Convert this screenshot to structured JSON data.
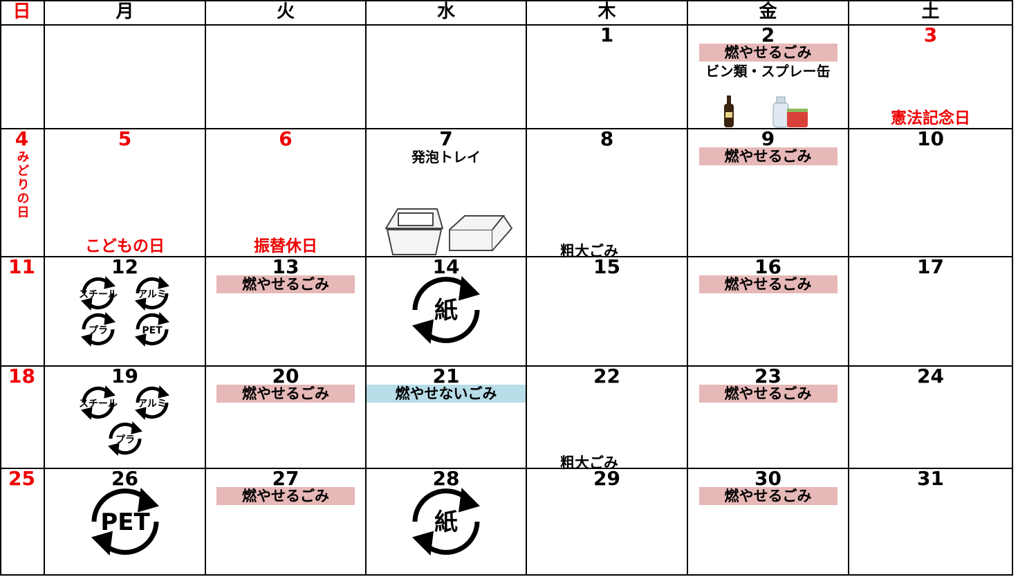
{
  "header": {
    "days": [
      "日",
      "月",
      "火",
      "水",
      "木",
      "金",
      "土"
    ]
  },
  "weeks": [
    [
      null,
      null,
      null,
      null,
      {
        "day": 1
      },
      {
        "day": 2,
        "tags": [
          "燃やせるごみ"
        ],
        "notes": [
          "ビン類・スプレー缶"
        ]
      },
      {
        "day": 3,
        "holiday": "憲法記念日"
      }
    ],
    [
      {
        "day": 4,
        "holiday": "みどりの日"
      },
      {
        "day": 5,
        "holiday": "こどもの日"
      },
      {
        "day": 6,
        "holiday": "振替休日"
      },
      {
        "day": 7,
        "notes": [
          "発泡トレイ"
        ]
      },
      {
        "day": 8,
        "bottom": "粗大ごみ"
      },
      {
        "day": 9,
        "tags": [
          "燃やせるごみ"
        ]
      },
      {
        "day": 10
      }
    ],
    [
      {
        "day": 11
      },
      {
        "day": 12,
        "icons": [
          "スチール",
          "アルミ",
          "プラ",
          "PET"
        ]
      },
      {
        "day": 13,
        "tags": [
          "燃やせるごみ"
        ]
      },
      {
        "day": 14,
        "icons": [
          "紙"
        ]
      },
      {
        "day": 15
      },
      {
        "day": 16,
        "tags": [
          "燃やせるごみ"
        ]
      },
      {
        "day": 17
      }
    ],
    [
      {
        "day": 18
      },
      {
        "day": 19,
        "icons": [
          "スチール",
          "アルミ",
          "プラ"
        ]
      },
      {
        "day": 20,
        "tags": [
          "燃やせるごみ"
        ]
      },
      {
        "day": 21,
        "wide_tags": [
          "燃やせないごみ"
        ]
      },
      {
        "day": 22,
        "bottom": "粗大ごみ"
      },
      {
        "day": 23,
        "tags": [
          "燃やせるごみ"
        ]
      },
      {
        "day": 24
      }
    ],
    [
      {
        "day": 25
      },
      {
        "day": 26,
        "icons": [
          "PET"
        ]
      },
      {
        "day": 27,
        "tags": [
          "燃やせるごみ"
        ]
      },
      {
        "day": 28,
        "icons": [
          "紙"
        ]
      },
      {
        "day": 29
      },
      {
        "day": 30,
        "tags": [
          "燃やせるごみ"
        ]
      },
      {
        "day": 31
      }
    ]
  ]
}
